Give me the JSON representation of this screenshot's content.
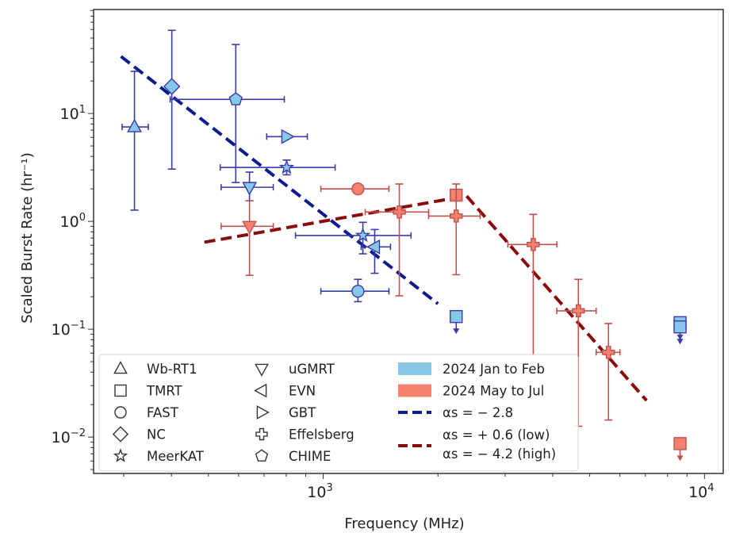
{
  "chart_data": {
    "type": "scatter",
    "xlabel": "Frequency (MHz)",
    "ylabel": "Scaled Burst Rate (hr⁻¹)",
    "xscale": "log",
    "yscale": "log",
    "xlim": [
      250,
      11200
    ],
    "ylim": [
      0.0046,
      92
    ],
    "grid": false,
    "x_ticks": [
      {
        "value": 1000,
        "label": "10",
        "exp": "3"
      },
      {
        "value": 10000,
        "label": "10",
        "exp": "4"
      }
    ],
    "y_ticks": [
      {
        "value": 10,
        "label": "10",
        "exp": "1"
      },
      {
        "value": 1,
        "label": "10",
        "exp": "0"
      },
      {
        "value": 0.1,
        "label": "10",
        "exp": "−1"
      },
      {
        "value": 0.01,
        "label": "10",
        "exp": "−2"
      }
    ],
    "colors": {
      "jan_feb_fill": "#87c8e8",
      "jan_feb_edge": "#3a3aa8",
      "may_jul_fill": "#f4806e",
      "may_jul_edge": "#c0504d",
      "fit_blue": "#0d1a8c",
      "fit_red": "#8b0a0a"
    },
    "legend": {
      "placement": "lower-left",
      "telescopes": [
        {
          "label": "Wb-RT1",
          "marker": "triangle-up"
        },
        {
          "label": "TMRT",
          "marker": "square"
        },
        {
          "label": "FAST",
          "marker": "circle"
        },
        {
          "label": "NC",
          "marker": "diamond"
        },
        {
          "label": "MeerKAT",
          "marker": "star"
        },
        {
          "label": "uGMRT",
          "marker": "triangle-down"
        },
        {
          "label": "EVN",
          "marker": "triangle-left"
        },
        {
          "label": "GBT",
          "marker": "triangle-right"
        },
        {
          "label": "Effelsberg",
          "marker": "plus"
        },
        {
          "label": "CHIME",
          "marker": "pentagon"
        }
      ],
      "epochs": [
        {
          "label": "2024 Jan to Feb",
          "color": "#87c8e8"
        },
        {
          "label": "2024 May to Jul",
          "color": "#f4806e"
        }
      ],
      "fits": [
        {
          "label": "αs = − 2.8",
          "color": "#0d1a8c"
        },
        {
          "label_low": "αs = + 0.6 (low)",
          "label_high": "αs = − 4.2 (high)",
          "color": "#8b0a0a"
        }
      ]
    },
    "series": [
      {
        "name": "2024 Jan to Feb",
        "points": [
          {
            "telescope": "Wb-RT1",
            "marker": "triangle-up",
            "freq": 320,
            "freq_err": [
              297,
              348
            ],
            "rate": 7.5,
            "rate_err": [
              1.27,
              24.6
            ]
          },
          {
            "telescope": "NC",
            "marker": "diamond",
            "freq": 401,
            "rate": 17.8,
            "rate_err": [
              3.05,
              59
            ]
          },
          {
            "telescope": "CHIME",
            "marker": "pentagon",
            "freq": 590,
            "freq_err": [
              397,
              791
            ],
            "rate": 13.5,
            "rate_err": [
              2.29,
              43.6
            ]
          },
          {
            "telescope": "GBT",
            "marker": "triangle-right",
            "freq": 802,
            "freq_err": [
              711,
              909
            ],
            "rate": 6.1
          },
          {
            "telescope": "MeerKAT",
            "marker": "star",
            "freq": 802,
            "freq_err": [
              537,
              1075
            ],
            "rate": 3.16,
            "rate_err": [
              2.7,
              3.7
            ]
          },
          {
            "telescope": "uGMRT",
            "marker": "triangle-down",
            "freq": 641,
            "freq_err": [
              540,
              740
            ],
            "rate": 2.07,
            "rate_err": [
              1.55,
              2.86
            ]
          },
          {
            "telescope": "MeerKAT",
            "marker": "star",
            "freq": 1271,
            "freq_err": [
              846,
              1700
            ],
            "rate": 0.74,
            "rate_err": [
              0.5,
              0.98
            ]
          },
          {
            "telescope": "EVN",
            "marker": "triangle-left",
            "freq": 1365,
            "freq_err": [
              1258,
              1502
            ],
            "rate": 0.58,
            "rate_err": [
              0.33,
              0.84
            ]
          },
          {
            "telescope": "FAST",
            "marker": "circle",
            "freq": 1234,
            "freq_err": [
              986,
              1488
            ],
            "rate": 0.225,
            "rate_err": [
              0.18,
              0.29
            ]
          },
          {
            "telescope": "TMRT",
            "marker": "square",
            "freq": 2233,
            "rate": 0.131,
            "upper_limit": true
          },
          {
            "telescope": "TMRT",
            "marker": "square",
            "freq": 8630,
            "rate": 0.115,
            "upper_limit": true
          },
          {
            "telescope": "TMRT",
            "marker": "square",
            "freq": 8630,
            "rate": 0.105,
            "upper_limit": true
          }
        ]
      },
      {
        "name": "2024 May to Jul",
        "points": [
          {
            "telescope": "uGMRT",
            "marker": "triangle-down",
            "freq": 641,
            "freq_err": [
              540,
              740
            ],
            "rate": 0.9,
            "rate_err": [
              0.316,
              1.55
            ]
          },
          {
            "telescope": "FAST",
            "marker": "circle",
            "freq": 1234,
            "freq_err": [
              986,
              1488
            ],
            "rate": 2.0
          },
          {
            "telescope": "Effelsberg",
            "marker": "plus",
            "freq": 1584,
            "freq_err": [
              1289,
              1891
            ],
            "rate": 1.22,
            "rate_err": [
              0.204,
              2.22
            ]
          },
          {
            "telescope": "TMRT",
            "marker": "square",
            "freq": 2233,
            "rate": 1.75
          },
          {
            "telescope": "Effelsberg",
            "marker": "plus",
            "freq": 2233,
            "freq_err": [
              1890,
              2580
            ],
            "rate": 1.12,
            "rate_err": [
              0.32,
              2.22
            ]
          },
          {
            "telescope": "Effelsberg",
            "marker": "plus",
            "freq": 3556,
            "freq_err": [
              3050,
              4100
            ],
            "rate": 0.61,
            "rate_err": [
              0.058,
              1.16
            ]
          },
          {
            "telescope": "Effelsberg",
            "marker": "plus",
            "freq": 4670,
            "freq_err": [
              4100,
              5200
            ],
            "rate": 0.148,
            "rate_err": [
              0.0126,
              0.29
            ]
          },
          {
            "telescope": "Effelsberg",
            "marker": "plus",
            "freq": 5600,
            "freq_err": [
              5200,
              6000
            ],
            "rate": 0.061,
            "rate_err": [
              0.0144,
              0.113
            ]
          },
          {
            "telescope": "TMRT",
            "marker": "square",
            "freq": 8630,
            "rate": 0.0087,
            "upper_limit": true
          }
        ]
      }
    ],
    "fit_lines": [
      {
        "label": "αs = − 2.8",
        "color": "#0d1a8c",
        "points": [
          [
            295,
            33.8
          ],
          [
            2000,
            0.172
          ]
        ]
      },
      {
        "label": "αs = + 0.6 (low) / − 4.2 (high)",
        "color": "#8b0a0a",
        "points": [
          [
            488,
            0.64
          ],
          [
            2377,
            1.72
          ],
          [
            7050,
            0.0218
          ]
        ]
      }
    ]
  }
}
